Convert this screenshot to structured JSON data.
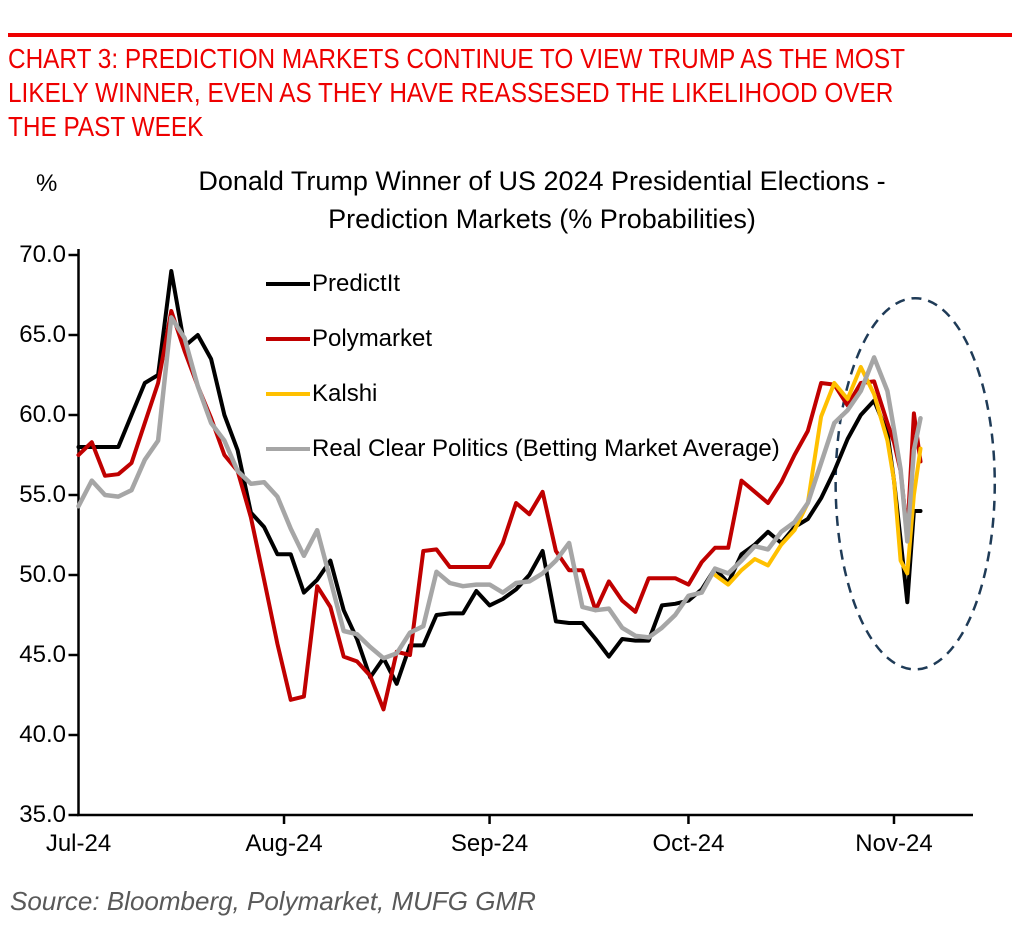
{
  "header": {
    "accent_color": "#EE0000",
    "title_lines": [
      "CHART 3: PREDICTION MARKETS CONTINUE TO VIEW TRUMP AS THE MOST",
      "LIKELY WINNER, EVEN AS THEY HAVE REASSESED THE LIKELIHOOD OVER",
      "THE PAST WEEK"
    ]
  },
  "chart": {
    "title_lines": [
      "Donald Trump Winner of US 2024 Presidential Elections -",
      "Prediction Markets (% Probabilities)"
    ],
    "y_unit_label": "%",
    "source_note": "Source: Bloomberg, Polymarket, MUFG GMR"
  },
  "chart_data": {
    "type": "line",
    "title": "Donald Trump Winner of US 2024 Presidential Elections - Prediction Markets (% Probabilities)",
    "xlabel": "",
    "ylabel": "%",
    "ylim": [
      35,
      70
    ],
    "y_ticks": [
      {
        "value": 70,
        "label": "70.0"
      },
      {
        "value": 65,
        "label": "65.0"
      },
      {
        "value": 60,
        "label": "60.0"
      },
      {
        "value": 55,
        "label": "55.0"
      },
      {
        "value": 50,
        "label": "50.0"
      },
      {
        "value": 45,
        "label": "45.0"
      },
      {
        "value": 40,
        "label": "40.0"
      },
      {
        "value": 35,
        "label": "35.0"
      }
    ],
    "x_ticks": [
      {
        "day": 0,
        "label": "Jul-24"
      },
      {
        "day": 31,
        "label": "Aug-24"
      },
      {
        "day": 62,
        "label": "Sep-24"
      },
      {
        "day": 92,
        "label": "Oct-24"
      },
      {
        "day": 123,
        "label": "Nov-24"
      }
    ],
    "grid": false,
    "legend_position": "upper-left-inside",
    "x_days": [
      0,
      2,
      4,
      6,
      8,
      10,
      12,
      14,
      16,
      18,
      20,
      22,
      24,
      26,
      28,
      30,
      32,
      34,
      36,
      38,
      40,
      42,
      44,
      46,
      48,
      50,
      52,
      54,
      56,
      58,
      60,
      62,
      64,
      66,
      68,
      70,
      72,
      74,
      76,
      78,
      80,
      82,
      84,
      86,
      88,
      90,
      92,
      94,
      96,
      98,
      100,
      102,
      104,
      106,
      108,
      110,
      112,
      114,
      116,
      118,
      120,
      122,
      123,
      124,
      125,
      126,
      127
    ],
    "x_dates": [
      "Jul 1",
      "Jul 3",
      "Jul 5",
      "Jul 7",
      "Jul 9",
      "Jul 11",
      "Jul 13",
      "Jul 15",
      "Jul 17",
      "Jul 19",
      "Jul 21",
      "Jul 23",
      "Jul 25",
      "Jul 27",
      "Jul 29",
      "Jul 31",
      "Aug 2",
      "Aug 4",
      "Aug 6",
      "Aug 8",
      "Aug 10",
      "Aug 12",
      "Aug 14",
      "Aug 16",
      "Aug 18",
      "Aug 20",
      "Aug 22",
      "Aug 24",
      "Aug 26",
      "Aug 28",
      "Aug 30",
      "Sep 1",
      "Sep 3",
      "Sep 5",
      "Sep 7",
      "Sep 9",
      "Sep 11",
      "Sep 13",
      "Sep 15",
      "Sep 17",
      "Sep 19",
      "Sep 21",
      "Sep 23",
      "Sep 25",
      "Sep 27",
      "Sep 29",
      "Oct 1",
      "Oct 3",
      "Oct 5",
      "Oct 7",
      "Oct 9",
      "Oct 11",
      "Oct 13",
      "Oct 15",
      "Oct 17",
      "Oct 19",
      "Oct 21",
      "Oct 23",
      "Oct 25",
      "Oct 27",
      "Oct 29",
      "Oct 31",
      "Nov 1",
      "Nov 2",
      "Nov 3",
      "Nov 4",
      "Nov 5"
    ],
    "series": [
      {
        "name": "PredictIt",
        "color": "#000000",
        "width": 4,
        "values": [
          58,
          58,
          58,
          58,
          60,
          62,
          62.5,
          69,
          64.3,
          65,
          63.5,
          60,
          57.8,
          53.9,
          53,
          51.3,
          51.3,
          48.9,
          49.7,
          50.9,
          47.8,
          46,
          43.6,
          44.8,
          43.2,
          45.6,
          45.6,
          47.5,
          47.6,
          47.6,
          49,
          48.1,
          48.5,
          49.1,
          50,
          51.5,
          47.1,
          47,
          47,
          46,
          44.9,
          46,
          45.9,
          45.9,
          48.1,
          48.2,
          48.4,
          49.1,
          50.4,
          49.5,
          51.3,
          51.9,
          52.7,
          52,
          53,
          53.5,
          54.8,
          56.5,
          58.5,
          60,
          60.9,
          58.9,
          55.9,
          52.2,
          48.3,
          54,
          54
        ]
      },
      {
        "name": "Polymarket",
        "color": "#C00000",
        "width": 4,
        "values": [
          57.5,
          58.3,
          56.2,
          56.3,
          57,
          59.5,
          62,
          66.5,
          64,
          61.8,
          59.8,
          57.5,
          56.5,
          53.6,
          49.7,
          45.7,
          42.2,
          42.4,
          49.3,
          48,
          44.9,
          44.6,
          43.7,
          41.6,
          45.2,
          45,
          51.5,
          51.6,
          50.5,
          50.5,
          50.5,
          50.5,
          52,
          54.5,
          53.8,
          55.2,
          51.5,
          50.3,
          50.3,
          47.8,
          49.6,
          48.4,
          47.7,
          49.8,
          49.8,
          49.8,
          49.4,
          50.8,
          51.7,
          51.7,
          55.9,
          55.2,
          54.5,
          55.8,
          57.5,
          59,
          62,
          61.9,
          60.6,
          62,
          62.1,
          59.5,
          58.3,
          56.5,
          52.6,
          60.1,
          57.1
        ]
      },
      {
        "name": "Kalshi",
        "color": "#FFC000",
        "width": 4,
        "values": [
          null,
          null,
          null,
          null,
          null,
          null,
          null,
          null,
          null,
          null,
          null,
          null,
          null,
          null,
          null,
          null,
          null,
          null,
          null,
          null,
          null,
          null,
          null,
          null,
          null,
          null,
          null,
          null,
          null,
          null,
          null,
          null,
          null,
          null,
          null,
          null,
          null,
          null,
          null,
          null,
          null,
          null,
          null,
          null,
          null,
          null,
          null,
          null,
          50,
          49.4,
          50.3,
          51,
          50.6,
          51.9,
          52.8,
          54.5,
          59.9,
          62,
          61,
          63,
          61.3,
          58.4,
          55.9,
          50.9,
          50.1,
          55,
          57.9
        ]
      },
      {
        "name": "Real Clear Politics (Betting Market Average)",
        "color": "#A6A6A6",
        "width": 4.5,
        "values": [
          54.3,
          55.9,
          55,
          54.9,
          55.3,
          57.2,
          58.4,
          66.1,
          64.8,
          61.8,
          59.5,
          58.4,
          56.5,
          55.7,
          55.8,
          54.9,
          52.9,
          51.2,
          52.8,
          49.7,
          46.5,
          46.3,
          45.5,
          44.8,
          45.1,
          46.4,
          46.8,
          50.2,
          49.5,
          49.3,
          49.4,
          49.4,
          48.9,
          49.5,
          49.6,
          50.1,
          50.9,
          52,
          48,
          47.8,
          47.9,
          46.7,
          46.2,
          46.1,
          46.7,
          47.5,
          48.7,
          48.9,
          50.4,
          50.1,
          50.9,
          51.8,
          51.6,
          52.7,
          53.3,
          54.5,
          57,
          59.5,
          60.3,
          61.5,
          63.6,
          61.5,
          59.1,
          56.6,
          52.1,
          57.8,
          59.8
        ]
      }
    ],
    "annotation": {
      "type": "dashed-ellipse",
      "color": "#1F3B57",
      "center_day": 126.2,
      "center_value": 55.7,
      "radius_days": 12,
      "radius_value": 11.6,
      "meaning": "highlights the reassessment of probabilities over the past week (late Oct - early Nov)"
    }
  }
}
